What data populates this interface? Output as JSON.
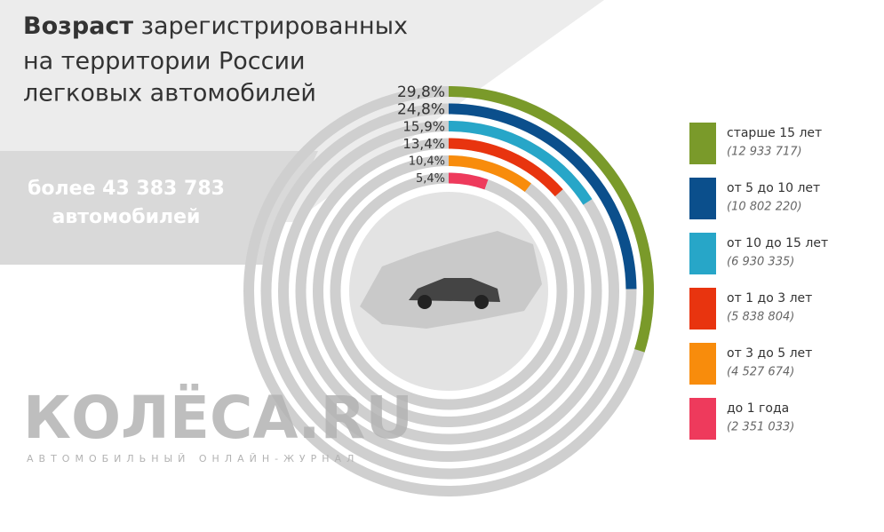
{
  "chart_data": {
    "type": "radial-bar",
    "title_bold": "Возраст",
    "title_rest": "зарегистрированных",
    "title_line2": "на территории России",
    "title_line3": "легковых автомобилей",
    "total_line1": "более  43 383 783",
    "total_line2": "автомобилей",
    "logo": "КОЛЁСА.RU",
    "logo_tagline": "АВТОМОБИЛЬНЫЙ ОНЛАЙН-ЖУРНАЛ",
    "categories": [
      "старше 15 лет",
      "от 5 до 10 лет",
      "от 10 до 15 лет",
      "от 1 до 3 лет",
      "от 3 до 5 лет",
      "до 1 года"
    ],
    "count_labels": [
      "(12 933 717)",
      "(10 802 220)",
      "(6 930 335)",
      "(5 838 804)",
      "(4 527 674)",
      "(2 351 033)"
    ],
    "values": [
      29.8,
      24.8,
      15.9,
      13.4,
      10.4,
      5.4
    ],
    "value_labels": [
      "29,8%",
      "24,8%",
      "15,9%",
      "13,4%",
      "10,4%",
      "5,4%"
    ],
    "colors": [
      "#7a9a2a",
      "#0b4f8c",
      "#27a6c8",
      "#e8340f",
      "#f88c0c",
      "#ee3a5c"
    ]
  }
}
